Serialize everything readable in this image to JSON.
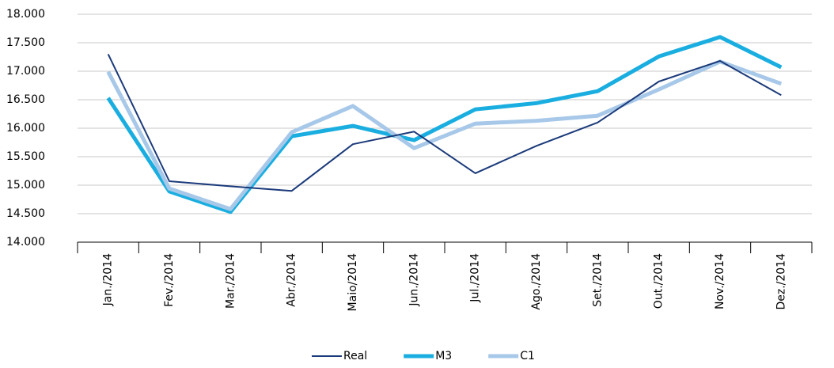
{
  "chart_data": {
    "type": "line",
    "categories": [
      "Jan./2014",
      "Fev./2014",
      "Mar./2014",
      "Abr./2014",
      "Maio/2014",
      "Jun./2014",
      "Jul./2014",
      "Ago./2014",
      "Set./2014",
      "Out./2014",
      "Nov./2014",
      "Dez./2014"
    ],
    "series": [
      {
        "name": "Real",
        "color": "#1b3a7a",
        "width": 2,
        "values": [
          17300,
          15070,
          14980,
          14900,
          15720,
          15940,
          15210,
          15690,
          16100,
          16820,
          17180,
          16580
        ]
      },
      {
        "name": "M3",
        "color": "#1aaee0",
        "width": 5,
        "values": [
          16530,
          14890,
          14530,
          15860,
          16040,
          15790,
          16330,
          16440,
          16650,
          17260,
          17600,
          17070
        ]
      },
      {
        "name": "C1",
        "color": "#a7c8e8",
        "width": 5,
        "values": [
          16990,
          14940,
          14580,
          15930,
          16390,
          15650,
          16080,
          16130,
          16220,
          16680,
          17170,
          16780
        ]
      }
    ],
    "ylim": [
      14000,
      18000
    ],
    "yticks": [
      {
        "value": 14000,
        "label": "14.000"
      },
      {
        "value": 14500,
        "label": "14.500"
      },
      {
        "value": 15000,
        "label": "15.000"
      },
      {
        "value": 15500,
        "label": "15.500"
      },
      {
        "value": 16000,
        "label": "16.000"
      },
      {
        "value": 16500,
        "label": "16.500"
      },
      {
        "value": 17000,
        "label": "17.000"
      },
      {
        "value": 17500,
        "label": "17.500"
      },
      {
        "value": 18000,
        "label": "18.000"
      }
    ],
    "grid": true
  }
}
